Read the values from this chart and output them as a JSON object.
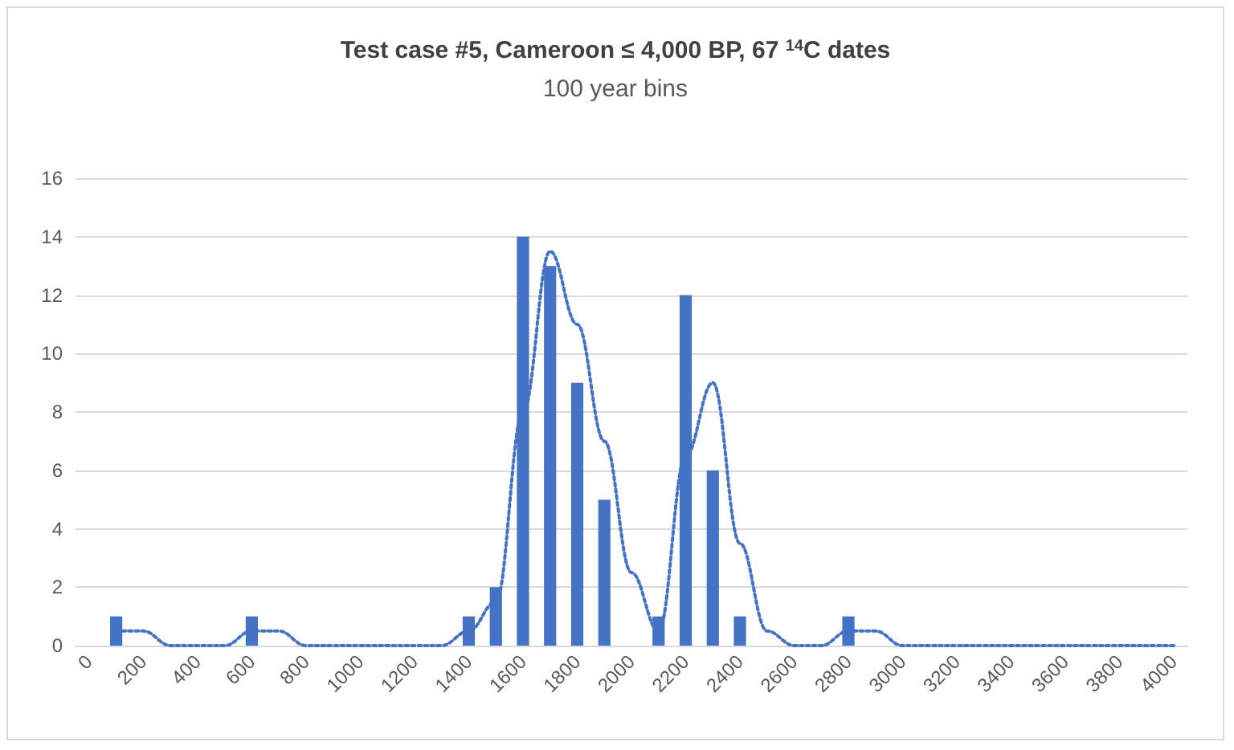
{
  "chart_data": {
    "type": "bar",
    "title": "Test case #5, Cameroon ≤ 4,000 BP, 67 $^{14}$C dates",
    "subtitle": "100 year bins",
    "categories": [
      "0",
      null,
      "200",
      null,
      "400",
      null,
      "600",
      null,
      "800",
      null,
      "1000",
      null,
      "1200",
      null,
      "1400",
      null,
      "1600",
      null,
      "1800",
      null,
      "2000",
      null,
      "2200",
      null,
      "2400",
      null,
      "2600",
      null,
      "2800",
      null,
      "3000",
      null,
      "3200",
      null,
      "3400",
      null,
      "3600",
      null,
      "3800",
      null,
      "4000"
    ],
    "series": [
      {
        "color": "#4472c4",
        "values": [
          0,
          1,
          0,
          0,
          0,
          0,
          1,
          0,
          0,
          0,
          0,
          0,
          0,
          0,
          1,
          2,
          14,
          13,
          9,
          5,
          0,
          1,
          12,
          6,
          1,
          0,
          0,
          0,
          1,
          0,
          0,
          0,
          0,
          0,
          0,
          0,
          0,
          0,
          0,
          0,
          0
        ]
      },
      {
        "type": "line",
        "color": "#4472c4",
        "line_style": "dotted",
        "marker": "none",
        "values": [
          null,
          0.5,
          0.5,
          0,
          0,
          0,
          0.5,
          0.5,
          0,
          0,
          0,
          0,
          0,
          0,
          0.5,
          1.5,
          8,
          13.5,
          11,
          7,
          2.5,
          0.5,
          6.5,
          9,
          3.5,
          0.5,
          0,
          0,
          0.5,
          0.5,
          0,
          0,
          0,
          0,
          0,
          0,
          0,
          0,
          0,
          0,
          0
        ]
      }
    ],
    "ylim": [
      0,
      16
    ],
    "yticks": [
      0,
      2,
      4,
      6,
      8,
      10,
      12,
      14,
      16
    ],
    "grid": "y"
  }
}
